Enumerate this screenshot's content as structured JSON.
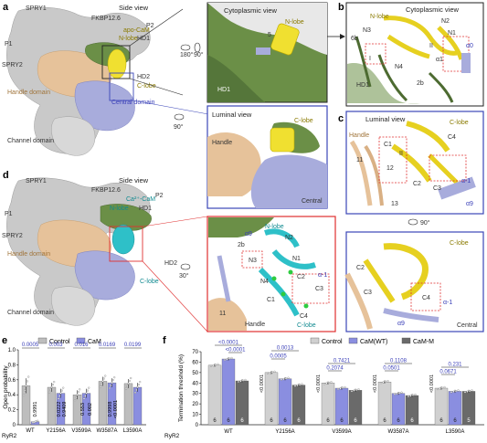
{
  "panels": {
    "a": {
      "letter": "a",
      "view_title": "Side view",
      "labels": {
        "spry1": "SPRY1",
        "fkbp": "FKBP12.6",
        "p2": "P2",
        "p1": "P1",
        "spry2": "SPRY2",
        "apo_cam": "apo-CaM",
        "n_lobe": "N-lobe",
        "hd1": "HD1",
        "hd2": "HD2",
        "c_lobe": "C-lobe",
        "handle": "Handle domain",
        "central": "Central domain",
        "channel": "Channel domain"
      },
      "rot1": "180°",
      "rot2": "90°",
      "rot3": "90°",
      "inset_cyto": {
        "title": "Cytoplasmic view",
        "n_lobe": "N-lobe",
        "hd1": "HD1",
        "num": "5"
      },
      "inset_lum": {
        "title": "Luminal view",
        "c_lobe": "C-lobe",
        "handle": "Handle",
        "central": "Central"
      }
    },
    "b": {
      "letter": "b",
      "title": "Cytoplasmic view",
      "labels": {
        "n_lobe": "N-lobe",
        "n3": "N3",
        "n2": "N2",
        "n1": "N1",
        "bb": "6b",
        "n4": "N4",
        "hd1": "HD1",
        "a1": "α1",
        "a0": "α0",
        "rom2": "II",
        "rom1": "I",
        "b2": "2b"
      }
    },
    "c": {
      "letter": "c",
      "title": "Luminal view",
      "labels": {
        "c_lobe": "C-lobe",
        "handle": "Handle",
        "c1": "C1",
        "c4": "C4",
        "c2": "C2",
        "c3": "C3",
        "n11": "11",
        "n12": "12",
        "n13": "13",
        "a_1": "α-1",
        "a9": "α9",
        "rom": "II"
      }
    },
    "c2": {
      "rot": "90°",
      "labels": {
        "c_lobe": "C-lobe",
        "c2": "C2",
        "c3": "C3",
        "c4": "C4",
        "a_1": "α-1",
        "a9": "α9",
        "central": "Central"
      }
    },
    "d": {
      "letter": "d",
      "view_title": "Side view",
      "labels": {
        "spry1": "SPRY1",
        "fkbp": "FKBP12.6",
        "p2": "P2",
        "p1": "P1",
        "spry2": "SPRY2",
        "ca_cam": "Ca²⁺-CaM",
        "n_lobe": "N-lobe",
        "hd1": "HD1",
        "hd2": "HD2",
        "c_lobe": "C-lobe",
        "handle": "Handle domain",
        "channel": "Channel domain"
      },
      "rot": "30°",
      "inset": {
        "n_lobe": "N-lobe",
        "n2": "N2",
        "n3": "N3",
        "n1": "N1",
        "a9": "α9",
        "b2": "2b",
        "n4": "N4",
        "c1": "C1",
        "c2": "C2",
        "c3": "C3",
        "c4": "C4",
        "c_lobe": "C-lobe",
        "handle": "Handle",
        "n11": "11",
        "a_1": "α-1"
      }
    }
  },
  "chart_data": [
    {
      "panel": "e",
      "type": "bar",
      "ylabel": "Open probability",
      "ylim": [
        0,
        1.0
      ],
      "yticks": [
        "0",
        "0.2",
        "0.4",
        "0.6",
        "0.8",
        "1.0"
      ],
      "row_label": "RyR2",
      "categories": [
        "WT",
        "Y2156A",
        "V3599A",
        "W3587A",
        "L3590A"
      ],
      "series": [
        {
          "name": "Control",
          "color": "#bdbdbd",
          "values": [
            0.52,
            0.5,
            0.4,
            0.58,
            0.55
          ],
          "errors": [
            0.1,
            0.06,
            0.06,
            0.06,
            0.06
          ]
        },
        {
          "name": "CaM",
          "color": "#8a8ee0",
          "values": [
            0.04,
            0.42,
            0.42,
            0.56,
            0.5
          ],
          "errors": [
            0.01,
            0.06,
            0.06,
            0.06,
            0.06
          ]
        }
      ],
      "pvalues_top": [
        {
          "cat": 0,
          "text": "0.0005",
          "color": "#3a3fb8"
        },
        {
          "cat": 1,
          "text": "0.003",
          "color": "#3a3fb8"
        },
        {
          "cat": 2,
          "text": "0.016",
          "color": "#3a3fb8"
        },
        {
          "cat": 3,
          "text": "0.0169",
          "color": "#3a3fb8"
        },
        {
          "cat": 4,
          "text": "0.0199",
          "color": "#3a3fb8"
        }
      ],
      "pvalues_vertical": [
        "0.9991",
        "0.0222",
        "0.9409",
        "0.553",
        "0.002",
        "0.9998",
        "<0.0001"
      ]
    },
    {
      "panel": "f",
      "type": "bar",
      "ylabel": "Termination threshold (%)",
      "ylim": [
        0,
        70
      ],
      "yticks": [
        "0",
        "10",
        "20",
        "30",
        "40",
        "50",
        "60",
        "70"
      ],
      "row_label": "RyR2",
      "categories": [
        "WT",
        "Y2156A",
        "V3599A",
        "W3587A",
        "L3590A"
      ],
      "series": [
        {
          "name": "Control",
          "color": "#d0d0d0",
          "values": [
            57,
            50,
            40,
            41,
            35
          ],
          "errors": [
            1.5,
            1.5,
            1.5,
            1.5,
            1.5
          ]
        },
        {
          "name": "CaM(WT)",
          "color": "#8a8ee0",
          "values": [
            63,
            44,
            35,
            30,
            32
          ],
          "errors": [
            1.5,
            1.5,
            1.5,
            1.5,
            1.5
          ]
        },
        {
          "name": "CaM-M",
          "color": "#6a6a6a",
          "values": [
            42,
            38,
            33,
            28,
            32
          ],
          "errors": [
            1.5,
            1.5,
            1.5,
            1.5,
            1.5
          ]
        }
      ],
      "n_labels": [
        [
          "6",
          "6",
          "6"
        ],
        [
          "6",
          "6",
          "6"
        ],
        [
          "6",
          "6",
          "6"
        ],
        [
          "6",
          "6",
          "6"
        ],
        [
          "6",
          "6",
          "5"
        ]
      ],
      "pvalues": [
        {
          "text": "<0.0001",
          "color": "#3a3fb8"
        },
        {
          "text": "<0.0001",
          "color": "#3a3fb8"
        },
        {
          "text": "0.0013",
          "color": "#3a3fb8"
        },
        {
          "text": "0.0005",
          "color": "#3a3fb8"
        },
        {
          "text": "0.7421",
          "color": "#3a3fb8"
        },
        {
          "text": "0.2074",
          "color": "#3a3fb8"
        },
        {
          "text": "0.1108",
          "color": "#3a3fb8"
        },
        {
          "text": "0.0501",
          "color": "#3a3fb8"
        },
        {
          "text": "0.231",
          "color": "#3a3fb8"
        },
        {
          "text": "0.0671",
          "color": "#3a3fb8"
        },
        {
          "text": "<0.0001",
          "color": "#222222"
        },
        {
          "text": "<0.0001",
          "color": "#222222"
        },
        {
          "text": "<0.0001",
          "color": "#222222"
        },
        {
          "text": "<0.0001",
          "color": "#222222"
        }
      ]
    }
  ],
  "legend_e": [
    "Control",
    "CaM"
  ],
  "legend_f": [
    "Control",
    "CaM(WT)",
    "CaM-M"
  ],
  "colors": {
    "olive": "#5a7a3a",
    "yellow": "#f0e030",
    "tan": "#e6c29a",
    "lavender": "#a8acdc",
    "cyan": "#2ec0c8",
    "blue_frame": "#3b46b8",
    "red": "#e03030"
  }
}
